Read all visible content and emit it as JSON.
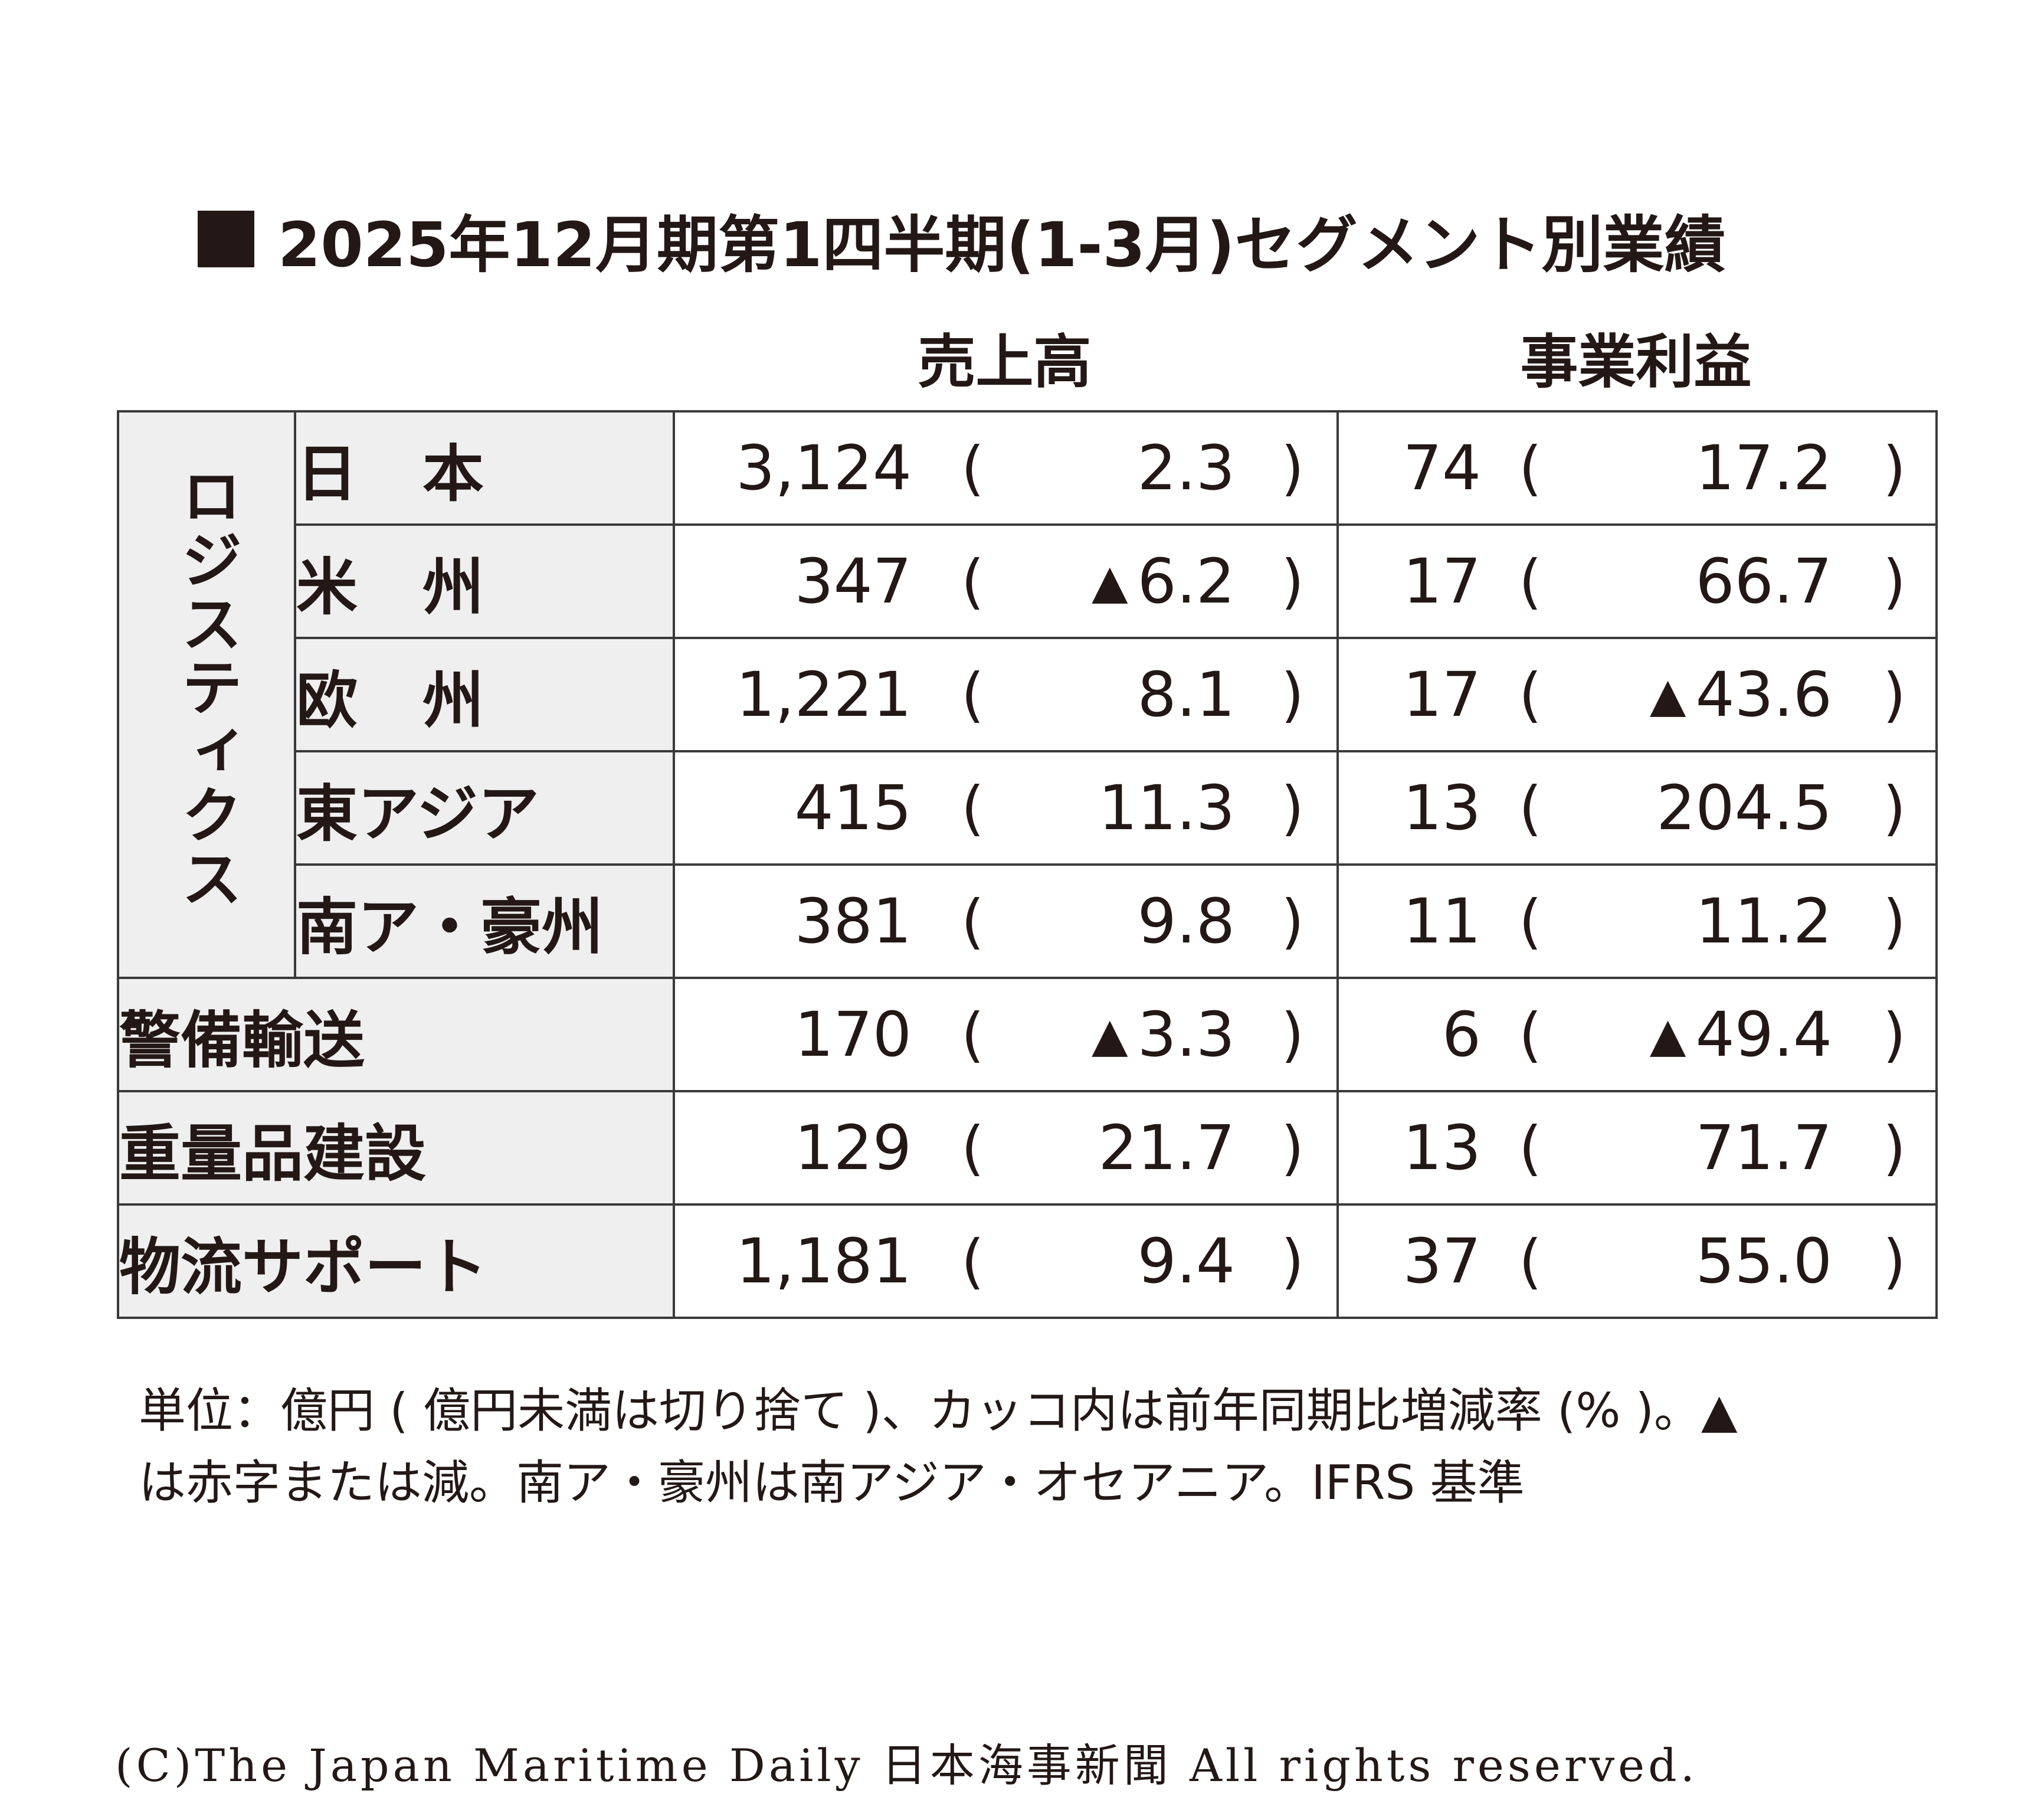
{
  "title": "2025年12月期第1四半期(1-3月)セグメント別業績",
  "headers": {
    "sales": "売上高",
    "profit": "事業利益"
  },
  "group_label": "ロジスティクス",
  "rows": [
    {
      "label": "日本",
      "sales": "3,124",
      "sales_chg": "2.3",
      "sales_neg": false,
      "profit": "74",
      "profit_chg": "17.2",
      "profit_neg": false
    },
    {
      "label": "米州",
      "sales": "347",
      "sales_chg": "6.2",
      "sales_neg": true,
      "profit": "17",
      "profit_chg": "66.7",
      "profit_neg": false
    },
    {
      "label": "欧州",
      "sales": "1,221",
      "sales_chg": "8.1",
      "sales_neg": false,
      "profit": "17",
      "profit_chg": "43.6",
      "profit_neg": true
    },
    {
      "label": "東アジア",
      "sales": "415",
      "sales_chg": "11.3",
      "sales_neg": false,
      "profit": "13",
      "profit_chg": "204.5",
      "profit_neg": false
    },
    {
      "label": "南ア・豪州",
      "sales": "381",
      "sales_chg": "9.8",
      "sales_neg": false,
      "profit": "11",
      "profit_chg": "11.2",
      "profit_neg": false
    },
    {
      "label": "警備輸送",
      "sales": "170",
      "sales_chg": "3.3",
      "sales_neg": true,
      "profit": "6",
      "profit_chg": "49.4",
      "profit_neg": true
    },
    {
      "label": "重量品建設",
      "sales": "129",
      "sales_chg": "21.7",
      "sales_neg": false,
      "profit": "13",
      "profit_chg": "71.7",
      "profit_neg": false
    },
    {
      "label": "物流サポート",
      "sales": "1,181",
      "sales_chg": "9.4",
      "sales_neg": false,
      "profit": "37",
      "profit_chg": "55.0",
      "profit_neg": false
    }
  ],
  "triangle": "▲",
  "paren_open": "(",
  "paren_close": ")",
  "note_line1": "単位：億円 ( 億円未満は切り捨て )、カッコ内は前年同期比増減率 (% )。▲",
  "note_line2": "は赤字または減。南ア・豪州は南アジア・オセアニア。IFRS 基準",
  "copyright": "(C)The Japan Maritime Daily 日本海事新聞 All rights reserved."
}
